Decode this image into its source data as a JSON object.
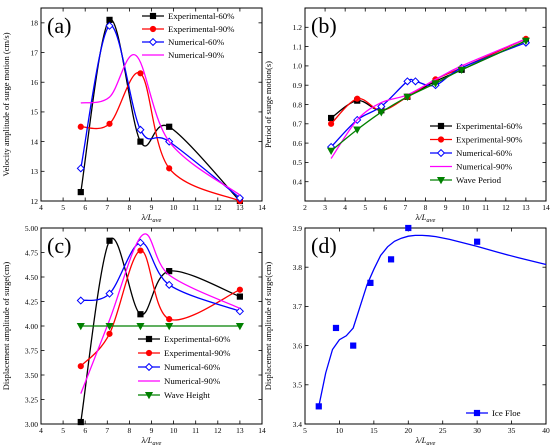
{
  "chart_data": [
    {
      "type": "line",
      "panel_label": "(a)",
      "xlabel": "λ/L",
      "xlabel_sub": "ave",
      "ylabel": "Velocity amplitude of surge motion (cm/s)",
      "xlim": [
        4,
        14
      ],
      "ylim": [
        12,
        18.5
      ],
      "xticks": [
        4,
        5,
        6,
        7,
        8,
        9,
        10,
        11,
        12,
        13,
        14
      ],
      "yticks": [
        12,
        13,
        14,
        15,
        16,
        17,
        18
      ],
      "legend_position": "top-right",
      "series": [
        {
          "name": "Experimental-60%",
          "color": "#000000",
          "marker": "square",
          "filled": true,
          "x": [
            5.8,
            7.1,
            8.5,
            9.8,
            13.0
          ],
          "y": [
            12.3,
            18.1,
            14.0,
            14.5,
            12.0
          ]
        },
        {
          "name": "Experimental-90%",
          "color": "#ff0000",
          "marker": "circle",
          "filled": true,
          "x": [
            5.8,
            7.1,
            8.5,
            9.8,
            13.0
          ],
          "y": [
            14.5,
            14.6,
            16.3,
            13.1,
            12.0
          ]
        },
        {
          "name": "Numerical-60%",
          "color": "#0000ff",
          "marker": "diamond",
          "filled": false,
          "x": [
            5.8,
            7.1,
            8.5,
            9.8,
            13.0
          ],
          "y": [
            13.1,
            17.9,
            14.4,
            14.0,
            12.1
          ]
        },
        {
          "name": "Numerical-90%",
          "color": "#ff00ff",
          "marker": "none",
          "filled": false,
          "x": [
            5.8,
            7.1,
            8.3,
            9.8,
            13.0
          ],
          "y": [
            15.3,
            15.5,
            16.9,
            14.0,
            12.2
          ]
        }
      ]
    },
    {
      "type": "line",
      "panel_label": "(b)",
      "xlabel": "λ/L",
      "xlabel_sub": "ave",
      "ylabel": "Period of surge motion(s)",
      "xlim": [
        2,
        14
      ],
      "ylim": [
        0.3,
        1.3
      ],
      "xticks": [
        2,
        3,
        4,
        5,
        6,
        7,
        8,
        9,
        10,
        11,
        12,
        13,
        14
      ],
      "yticks": [
        0.4,
        0.5,
        0.6,
        0.7,
        0.8,
        0.9,
        1.0,
        1.1,
        1.2
      ],
      "legend_position": "bottom-right",
      "series": [
        {
          "name": "Experimental-60%",
          "color": "#000000",
          "marker": "square",
          "filled": true,
          "x": [
            3.3,
            4.6,
            5.8,
            7.1,
            8.5,
            9.8,
            13.0
          ],
          "y": [
            0.73,
            0.82,
            0.77,
            0.84,
            0.92,
            0.98,
            1.13
          ]
        },
        {
          "name": "Experimental-90%",
          "color": "#ff0000",
          "marker": "circle",
          "filled": true,
          "x": [
            3.3,
            4.6,
            5.8,
            7.1,
            8.5,
            9.8,
            13.0
          ],
          "y": [
            0.7,
            0.83,
            0.77,
            0.84,
            0.93,
            0.99,
            1.14
          ]
        },
        {
          "name": "Numerical-60%",
          "color": "#0000ff",
          "marker": "diamond",
          "filled": false,
          "x": [
            3.3,
            4.6,
            5.8,
            7.1,
            7.5,
            8.5,
            9.8,
            13.0
          ],
          "y": [
            0.58,
            0.72,
            0.79,
            0.92,
            0.92,
            0.9,
            0.99,
            1.12
          ]
        },
        {
          "name": "Numerical-90%",
          "color": "#ff00ff",
          "marker": "none",
          "filled": false,
          "x": [
            3.3,
            4.6,
            5.8,
            7.1,
            8.5,
            9.8,
            13.0
          ],
          "y": [
            0.52,
            0.72,
            0.81,
            0.85,
            0.93,
            1.0,
            1.14
          ]
        },
        {
          "name": "Wave Period",
          "color": "#008000",
          "marker": "triangle-down",
          "filled": true,
          "x": [
            3.3,
            4.6,
            5.8,
            7.1,
            8.5,
            9.8,
            13.0
          ],
          "y": [
            0.56,
            0.67,
            0.76,
            0.84,
            0.91,
            0.98,
            1.13
          ]
        }
      ]
    },
    {
      "type": "line",
      "panel_label": "(c)",
      "xlabel": "λ/L",
      "xlabel_sub": "ave",
      "ylabel": "Displacement amplitude of surge(cm)",
      "xlim": [
        4,
        14
      ],
      "ylim": [
        3.0,
        5.0
      ],
      "xticks": [
        4,
        5,
        6,
        7,
        8,
        9,
        10,
        11,
        12,
        13,
        14
      ],
      "yticks": [
        3.0,
        3.25,
        3.5,
        3.75,
        4.0,
        4.25,
        4.5,
        4.75,
        5.0
      ],
      "ytick_labels": [
        "3.00",
        "3.25",
        "3.50",
        "3.75",
        "4.00",
        "4.25",
        "4.50",
        "4.75",
        "5.00"
      ],
      "legend_position": "bottom-right",
      "series": [
        {
          "name": "Experimental-60%",
          "color": "#000000",
          "marker": "square",
          "filled": true,
          "x": [
            5.8,
            7.1,
            8.5,
            9.8,
            13.0
          ],
          "y": [
            3.02,
            4.87,
            4.12,
            4.56,
            4.3
          ]
        },
        {
          "name": "Experimental-90%",
          "color": "#ff0000",
          "marker": "circle",
          "filled": true,
          "x": [
            5.8,
            7.1,
            8.5,
            9.8,
            13.0
          ],
          "y": [
            3.59,
            3.92,
            4.77,
            4.07,
            4.37
          ]
        },
        {
          "name": "Numerical-60%",
          "color": "#0000ff",
          "marker": "diamond",
          "filled": false,
          "x": [
            5.8,
            7.1,
            8.5,
            9.8,
            13.0
          ],
          "y": [
            4.26,
            4.33,
            4.85,
            4.42,
            4.15
          ]
        },
        {
          "name": "Numerical-90%",
          "color": "#ff00ff",
          "marker": "none",
          "filled": false,
          "x": [
            5.8,
            7.1,
            8.6,
            9.8,
            13.0
          ],
          "y": [
            3.31,
            4.06,
            4.93,
            4.52,
            4.18
          ]
        },
        {
          "name": "Wave Height",
          "color": "#008000",
          "marker": "triangle-down",
          "filled": true,
          "x": [
            5.8,
            7.1,
            8.5,
            9.8,
            13.0
          ],
          "y": [
            4.0,
            4.0,
            4.0,
            4.0,
            4.0
          ]
        }
      ]
    },
    {
      "type": "line",
      "panel_label": "(d)",
      "xlabel": "λ/L",
      "xlabel_sub": "ave",
      "ylabel": "Displacement amplitude of surge(cm)",
      "xlim": [
        5,
        40
      ],
      "ylim": [
        3.4,
        3.9
      ],
      "xticks": [
        5,
        10,
        15,
        20,
        25,
        30,
        35,
        40
      ],
      "yticks": [
        3.4,
        3.5,
        3.6,
        3.7,
        3.8,
        3.9
      ],
      "legend_position": "bottom-right",
      "series": [
        {
          "name": "Ice Floe",
          "color": "#0000ff",
          "marker": "square",
          "filled": true,
          "x": [
            7,
            9.5,
            12,
            14.5,
            17.5,
            20,
            30
          ],
          "y": [
            3.445,
            3.645,
            3.6,
            3.76,
            3.82,
            3.9,
            3.865
          ],
          "curve_x": [
            7,
            8,
            9,
            10,
            11,
            12,
            13,
            14,
            15,
            16,
            17,
            18,
            19,
            20,
            21,
            22,
            23,
            24,
            26,
            28,
            30,
            33,
            36,
            40
          ],
          "curve_y": [
            3.445,
            3.53,
            3.59,
            3.615,
            3.625,
            3.645,
            3.7,
            3.755,
            3.795,
            3.83,
            3.852,
            3.866,
            3.874,
            3.879,
            3.881,
            3.881,
            3.88,
            3.878,
            3.871,
            3.862,
            3.853,
            3.838,
            3.824,
            3.807
          ]
        }
      ]
    }
  ]
}
